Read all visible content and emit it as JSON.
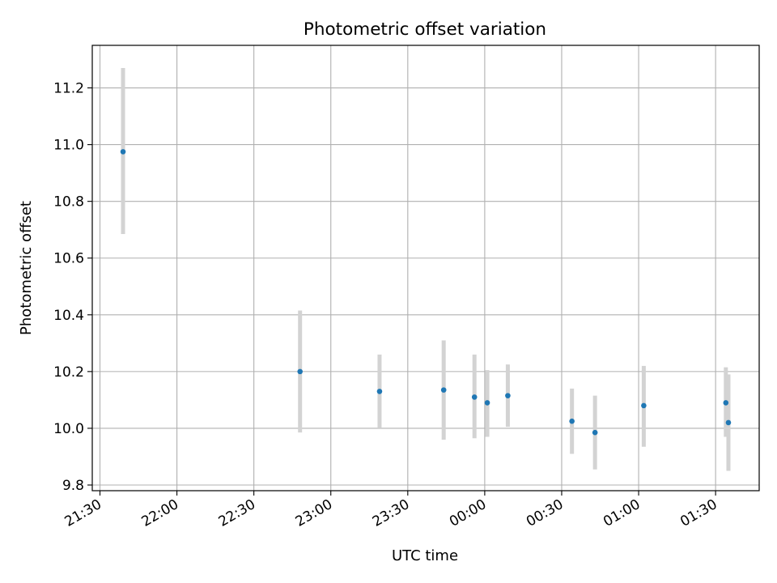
{
  "chart_data": {
    "type": "scatter",
    "title": "Photometric offset variation",
    "xlabel": "UTC time",
    "ylabel": "Photometric offset",
    "xlim": [
      "21:27",
      "01:47"
    ],
    "ylim": [
      9.78,
      11.35
    ],
    "x_ticks": [
      "21:30",
      "22:00",
      "22:30",
      "23:00",
      "23:30",
      "00:00",
      "00:30",
      "01:00",
      "01:30"
    ],
    "y_ticks": [
      9.8,
      10.0,
      10.2,
      10.4,
      10.6,
      10.8,
      11.0,
      11.2
    ],
    "grid": true,
    "marker_color": "#1f77b4",
    "errorbar_color": "#d3d3d3",
    "points": [
      {
        "time": "21:39",
        "y": 10.975,
        "low": 10.685,
        "high": 11.27
      },
      {
        "time": "22:48",
        "y": 10.2,
        "low": 9.985,
        "high": 10.415
      },
      {
        "time": "23:19",
        "y": 10.13,
        "low": 10.0,
        "high": 10.26
      },
      {
        "time": "23:44",
        "y": 10.135,
        "low": 9.96,
        "high": 10.31
      },
      {
        "time": "23:56",
        "y": 10.11,
        "low": 9.965,
        "high": 10.26
      },
      {
        "time": "00:01",
        "y": 10.09,
        "low": 9.97,
        "high": 10.205
      },
      {
        "time": "00:09",
        "y": 10.115,
        "low": 10.005,
        "high": 10.225
      },
      {
        "time": "00:34",
        "y": 10.025,
        "low": 9.91,
        "high": 10.14
      },
      {
        "time": "00:43",
        "y": 9.985,
        "low": 9.855,
        "high": 10.115
      },
      {
        "time": "01:02",
        "y": 10.08,
        "low": 9.935,
        "high": 10.22
      },
      {
        "time": "01:34",
        "y": 10.09,
        "low": 9.97,
        "high": 10.215
      },
      {
        "time": "01:35",
        "y": 10.02,
        "low": 9.85,
        "high": 10.19
      }
    ]
  }
}
